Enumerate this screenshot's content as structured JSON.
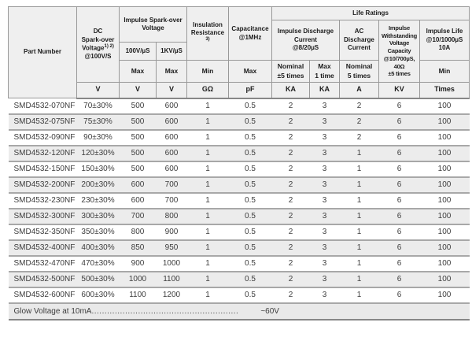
{
  "colors": {
    "header_bg": "#efefef",
    "alt_row_bg": "#ececec",
    "footer_bg": "#e9e9e9",
    "grid_border": "#999999",
    "row_divider": "#a8a8a8",
    "strong_divider": "#878787",
    "header_text": "#1b1b1b",
    "body_text": "#3d3d3d"
  },
  "table": {
    "header": {
      "part_number": "Part Number",
      "dc": {
        "l1": "DC",
        "l2": "Spark-over",
        "l3": "Voltage",
        "sup": "1) 2)",
        "l4": "@100V/S"
      },
      "impulse_sparkover": {
        "l1": "Impulse Spark-over",
        "l2": "Voltage"
      },
      "col_100v": "100V/µS",
      "col_1kv": "1KV/µS",
      "insulation": {
        "l1": "Insulation",
        "l2": "Resistance",
        "sup": "3)"
      },
      "capacitance": {
        "l1": "Capacitance",
        "l2": "@1MHz"
      },
      "life_ratings": "Life Ratings",
      "impulse_discharge": {
        "l1": "Impulse Discharge",
        "l2": "Current",
        "l3": "@8/20µS"
      },
      "ac_discharge": {
        "l1": "AC",
        "l2": "Discharge",
        "l3": "Current"
      },
      "impulse_withstanding": {
        "l1": "Impulse",
        "l2": "Withstanding",
        "l3": "Voltage",
        "l4": "Capacity",
        "l5": "@10/700µS,",
        "l6": "40Ω",
        "l7": "±5 times"
      },
      "impulse_life": {
        "l1": "Impulse Life",
        "l2": "@10/1000µS",
        "l3": "10A"
      },
      "max": "Max",
      "min": "Min",
      "nominal_pm5": {
        "l1": "Nominal",
        "l2": "±5 times"
      },
      "max_1time": {
        "l1": "Max",
        "l2": "1 time"
      },
      "nominal_5times": {
        "l1": "Nominal",
        "l2": "5 times"
      }
    },
    "units": [
      "V",
      "V",
      "V",
      "GΩ",
      "pF",
      "KA",
      "KA",
      "A",
      "KV",
      "Times"
    ],
    "rows": [
      {
        "part": "SMD4532-070NF",
        "values": [
          "70±30%",
          "500",
          "600",
          "1",
          "0.5",
          "2",
          "3",
          "2",
          "6",
          "100"
        ]
      },
      {
        "part": "SMD4532-075NF",
        "values": [
          "75±30%",
          "500",
          "600",
          "1",
          "0.5",
          "2",
          "3",
          "2",
          "6",
          "100"
        ]
      },
      {
        "part": "SMD4532-090NF",
        "values": [
          "90±30%",
          "500",
          "600",
          "1",
          "0.5",
          "2",
          "3",
          "2",
          "6",
          "100"
        ]
      },
      {
        "part": "SMD4532-120NF",
        "values": [
          "120±30%",
          "500",
          "600",
          "1",
          "0.5",
          "2",
          "3",
          "1",
          "6",
          "100"
        ]
      },
      {
        "part": "SMD4532-150NF",
        "values": [
          "150±30%",
          "500",
          "600",
          "1",
          "0.5",
          "2",
          "3",
          "1",
          "6",
          "100"
        ]
      },
      {
        "part": "SMD4532-200NF",
        "values": [
          "200±30%",
          "600",
          "700",
          "1",
          "0.5",
          "2",
          "3",
          "1",
          "6",
          "100"
        ]
      },
      {
        "part": "SMD4532-230NF",
        "values": [
          "230±30%",
          "600",
          "700",
          "1",
          "0.5",
          "2",
          "3",
          "1",
          "6",
          "100"
        ]
      },
      {
        "part": "SMD4532-300NF",
        "values": [
          "300±30%",
          "700",
          "800",
          "1",
          "0.5",
          "2",
          "3",
          "1",
          "6",
          "100"
        ]
      },
      {
        "part": "SMD4532-350NF",
        "values": [
          "350±30%",
          "800",
          "900",
          "1",
          "0.5",
          "2",
          "3",
          "1",
          "6",
          "100"
        ]
      },
      {
        "part": "SMD4532-400NF",
        "values": [
          "400±30%",
          "850",
          "950",
          "1",
          "0.5",
          "2",
          "3",
          "1",
          "6",
          "100"
        ]
      },
      {
        "part": "SMD4532-470NF",
        "values": [
          "470±30%",
          "900",
          "1000",
          "1",
          "0.5",
          "2",
          "3",
          "1",
          "6",
          "100"
        ]
      },
      {
        "part": "SMD4532-500NF",
        "values": [
          "500±30%",
          "1000",
          "1100",
          "1",
          "0.5",
          "2",
          "3",
          "1",
          "6",
          "100"
        ]
      },
      {
        "part": "SMD4532-600NF",
        "values": [
          "600±30%",
          "1100",
          "1200",
          "1",
          "0.5",
          "2",
          "3",
          "1",
          "6",
          "100"
        ]
      }
    ]
  },
  "footer": {
    "label": "Glow Voltage at 10mA",
    "dots": ".........................................................",
    "value": "~60V"
  }
}
